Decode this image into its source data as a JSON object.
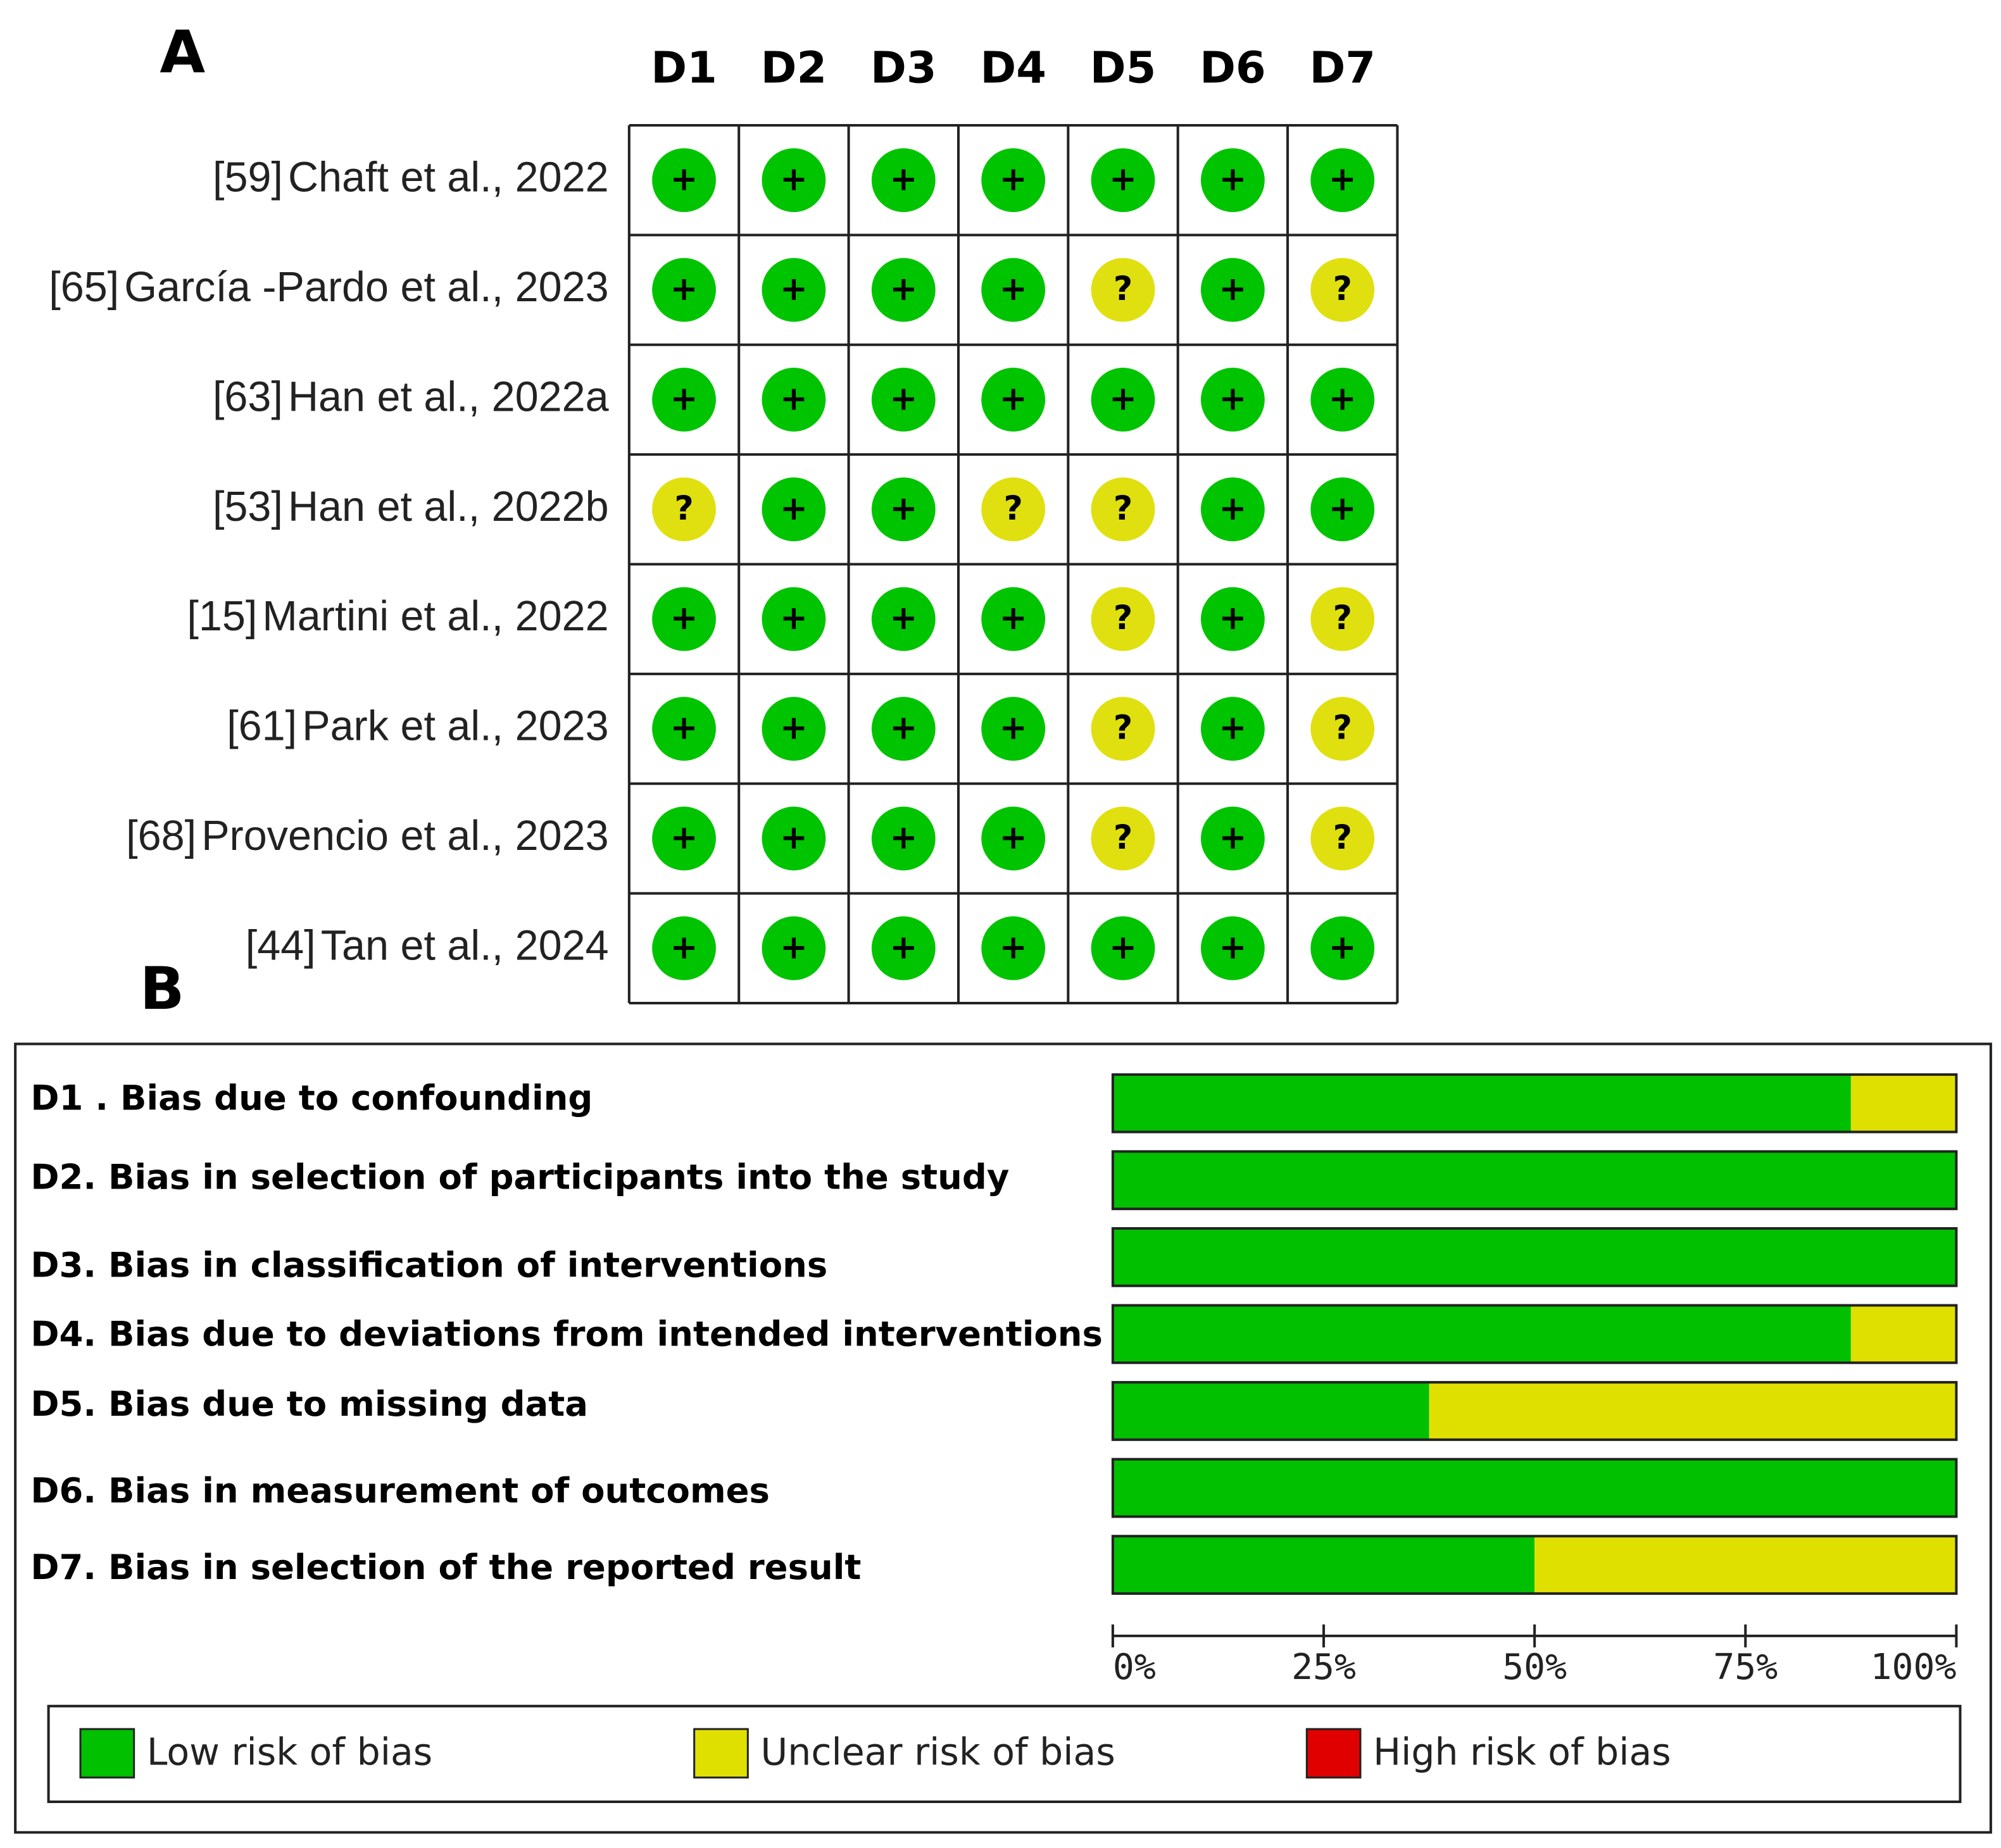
{
  "chart_data": [
    {
      "type": "traffic-light",
      "panel_label": "A",
      "columns": [
        "D1",
        "D2",
        "D3",
        "D4",
        "D5",
        "D6",
        "D7"
      ],
      "rows": [
        {
          "ref": "[59]",
          "study": "Chaft et al., 2022",
          "judgments": [
            "+",
            "+",
            "+",
            "+",
            "+",
            "+",
            "+"
          ]
        },
        {
          "ref": "[65]",
          "study": "García -Pardo et al., 2023",
          "judgments": [
            "+",
            "+",
            "+",
            "+",
            "?",
            "+",
            "?"
          ]
        },
        {
          "ref": "[63]",
          "study": "Han et al., 2022a",
          "judgments": [
            "+",
            "+",
            "+",
            "+",
            "+",
            "+",
            "+"
          ]
        },
        {
          "ref": "[53]",
          "study": "Han et al., 2022b",
          "judgments": [
            "?",
            "+",
            "+",
            "?",
            "?",
            "+",
            "+"
          ]
        },
        {
          "ref": "[15]",
          "study": "Martini et al., 2022",
          "judgments": [
            "+",
            "+",
            "+",
            "+",
            "?",
            "+",
            "?"
          ]
        },
        {
          "ref": "[61]",
          "study": "Park et al., 2023",
          "judgments": [
            "+",
            "+",
            "+",
            "+",
            "?",
            "+",
            "?"
          ]
        },
        {
          "ref": "[68]",
          "study": "Provencio et al., 2023",
          "judgments": [
            "+",
            "+",
            "+",
            "+",
            "?",
            "+",
            "?"
          ]
        },
        {
          "ref": "[44]",
          "study": "Tan et al., 2024",
          "judgments": [
            "+",
            "+",
            "+",
            "+",
            "+",
            "+",
            "+"
          ]
        }
      ],
      "colors": {
        "+": "#00c400",
        "?": "#e0e010"
      }
    },
    {
      "type": "stacked-bar-horizontal",
      "panel_label": "B",
      "categories": [
        "D1 . Bias due to confounding",
        "D2. Bias in selection of participants into the study",
        "D3. Bias in classification of interventions",
        "D4. Bias due to deviations from intended interventions",
        "D5. Bias due to missing data",
        "D6. Bias in measurement of outcomes",
        "D7. Bias in selection of the reported result"
      ],
      "series": [
        {
          "name": "Low risk of bias",
          "color": "#00c000",
          "values": [
            87.5,
            100,
            100,
            87.5,
            37.5,
            100,
            50
          ]
        },
        {
          "name": "Unclear risk of bias",
          "color": "#e0e000",
          "values": [
            12.5,
            0,
            0,
            12.5,
            62.5,
            0,
            50
          ]
        },
        {
          "name": "High risk of bias",
          "color": "#e00000",
          "values": [
            0,
            0,
            0,
            0,
            0,
            0,
            0
          ]
        }
      ],
      "xlim": [
        0,
        100
      ],
      "xticks": [
        {
          "value": 0,
          "label": "0%"
        },
        {
          "value": 25,
          "label": "25%"
        },
        {
          "value": 50,
          "label": "50%"
        },
        {
          "value": 75,
          "label": "75%"
        },
        {
          "value": 100,
          "label": "100%"
        }
      ]
    }
  ]
}
